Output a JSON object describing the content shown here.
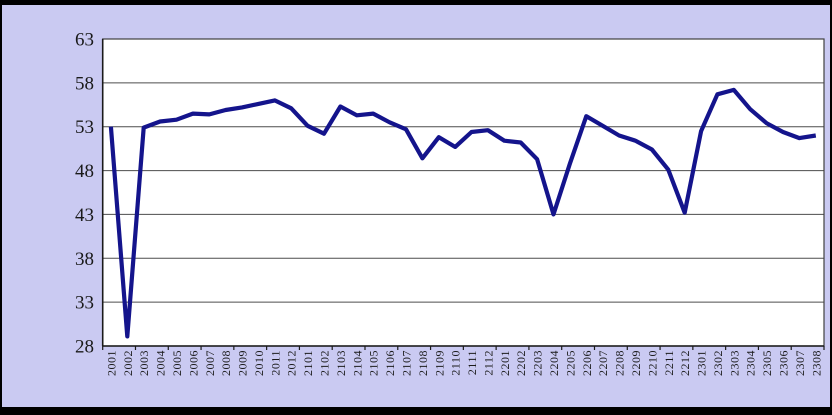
{
  "chart_data": {
    "type": "line",
    "title": "",
    "xlabel": "",
    "ylabel": "",
    "legend": "none",
    "grid": true,
    "ylim": [
      28,
      63
    ],
    "yticks": [
      28,
      33,
      38,
      43,
      48,
      53,
      58,
      63
    ],
    "x_tick_every": 2,
    "categories": [
      "2001",
      "2002",
      "2003",
      "2004",
      "2005",
      "2006",
      "2007",
      "2008",
      "2009",
      "2010",
      "2011",
      "2012",
      "2101",
      "2102",
      "2103",
      "2104",
      "2105",
      "2106",
      "2107",
      "2108",
      "2109",
      "2110",
      "2111",
      "2112",
      "2201",
      "2202",
      "2203",
      "2204",
      "2205",
      "2206",
      "2207",
      "2208",
      "2209",
      "2210",
      "2211",
      "2212",
      "2301",
      "2302",
      "2303",
      "2304",
      "2305",
      "2306",
      "2307",
      "2308"
    ],
    "values": [
      53.0,
      29.1,
      52.9,
      53.6,
      53.8,
      54.5,
      54.4,
      54.9,
      55.2,
      55.6,
      56.0,
      55.1,
      53.1,
      52.2,
      55.3,
      54.3,
      54.5,
      53.5,
      52.7,
      49.4,
      51.8,
      50.7,
      52.4,
      52.6,
      51.4,
      51.2,
      49.3,
      43.0,
      48.8,
      54.2,
      53.1,
      52.0,
      51.4,
      50.4,
      48.1,
      43.2,
      52.5,
      56.7,
      57.2,
      55.0,
      53.4,
      52.4,
      51.7,
      52.0
    ],
    "colors": {
      "line": "#14148C",
      "plot_bg": "#FFFFFF",
      "chart_bg": "#CACAF2",
      "gridline": "#4D4D4D",
      "plot_border": "#404040",
      "axis": "#1A1A1A",
      "tick": "#1A1A1A",
      "label": "#1A1A1A",
      "frame": "#000000"
    }
  }
}
